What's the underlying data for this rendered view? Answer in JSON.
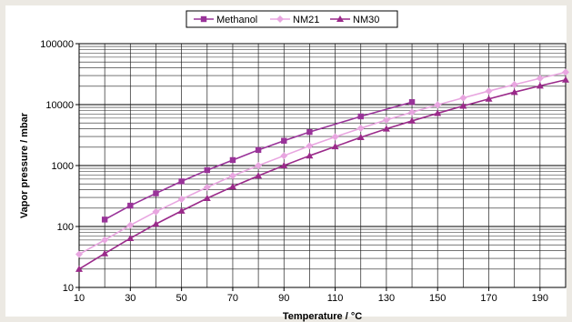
{
  "chart_data": {
    "type": "line",
    "title": "",
    "xlabel": "Temperature / °C",
    "ylabel": "Vapor pressure / mbar",
    "xlim": [
      10,
      200
    ],
    "ylim": [
      10,
      100000
    ],
    "y_scale": "log",
    "grid": true,
    "legend_position": "top",
    "x_ticks": [
      "10",
      "30",
      "50",
      "70",
      "90",
      "110",
      "130",
      "150",
      "170",
      "190"
    ],
    "y_ticks": [
      "10",
      "100",
      "1000",
      "10000",
      "100000"
    ],
    "series": [
      {
        "name": "Methanol",
        "color": "#993399",
        "marker": "square",
        "x": [
          20,
          30,
          40,
          50,
          60,
          70,
          80,
          90,
          100,
          120,
          140
        ],
        "y": [
          130,
          220,
          350,
          550,
          840,
          1230,
          1800,
          2550,
          3550,
          6400,
          11000
        ]
      },
      {
        "name": "NM21",
        "color": "#e8a6e0",
        "marker": "diamond",
        "x": [
          10,
          20,
          30,
          40,
          50,
          60,
          70,
          80,
          90,
          100,
          110,
          120,
          130,
          140,
          150,
          160,
          170,
          180,
          190,
          200
        ],
        "y": [
          35,
          60,
          105,
          175,
          280,
          440,
          680,
          1000,
          1450,
          2100,
          2950,
          4100,
          5600,
          7500,
          9900,
          12900,
          16700,
          21300,
          27000,
          34000
        ]
      },
      {
        "name": "NM30",
        "color": "#9a2a8a",
        "marker": "triangle",
        "x": [
          10,
          20,
          30,
          40,
          50,
          60,
          70,
          80,
          90,
          100,
          110,
          120,
          130,
          140,
          150,
          160,
          170,
          180,
          190,
          200
        ],
        "y": [
          20,
          36,
          64,
          110,
          180,
          290,
          450,
          680,
          1000,
          1450,
          2050,
          2900,
          4000,
          5400,
          7200,
          9500,
          12400,
          16000,
          20300,
          25500
        ]
      }
    ]
  }
}
